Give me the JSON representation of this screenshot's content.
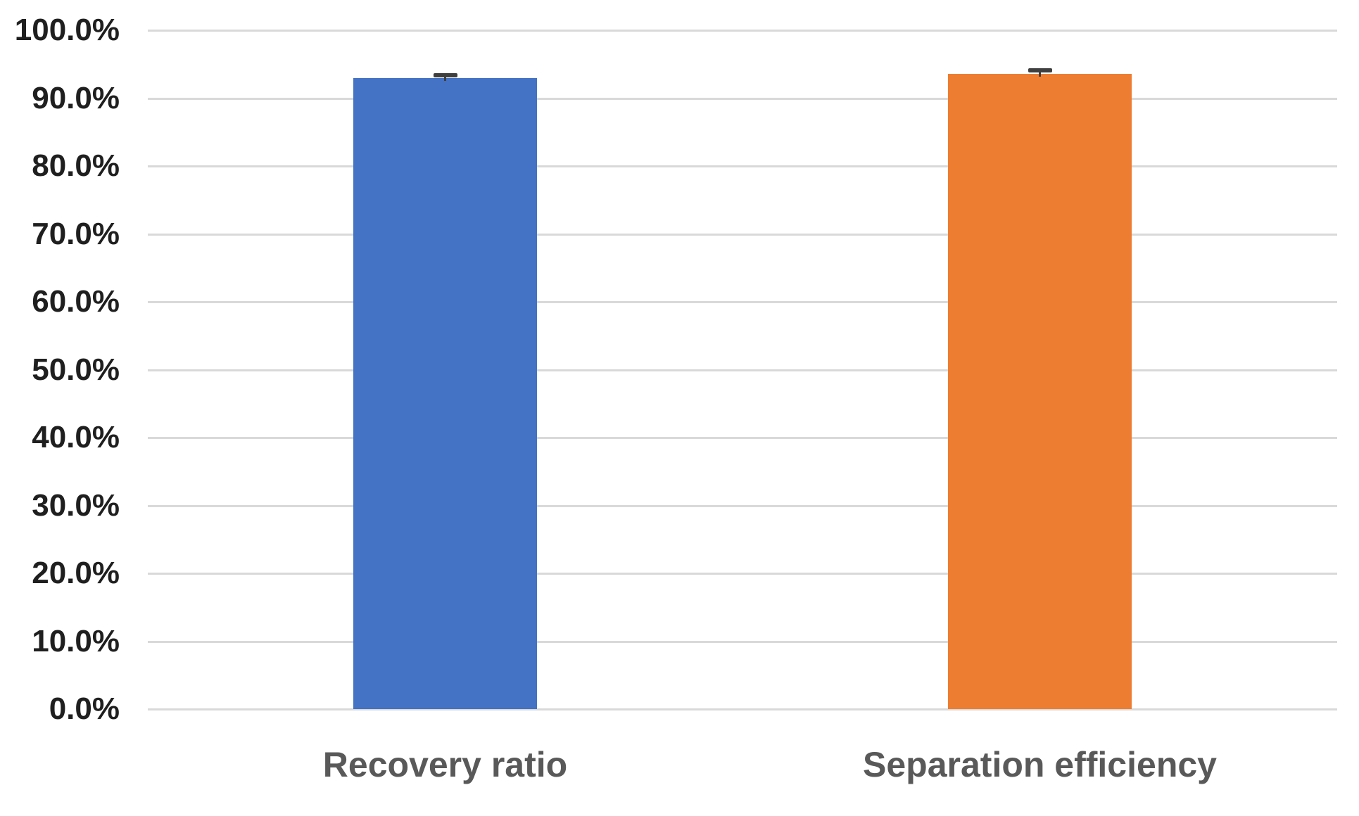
{
  "chart_data": {
    "type": "bar",
    "title": "",
    "xlabel": "",
    "ylabel": "",
    "categories": [
      "Recovery ratio",
      "Separation efficiency"
    ],
    "values": [
      93.0,
      93.6
    ],
    "errors_plus": [
      0.4,
      0.5
    ],
    "bar_colors": [
      "#4472c4",
      "#ed7d31"
    ],
    "ylim": [
      0,
      100
    ],
    "ytick_step": 10,
    "ytick_labels": [
      "0.0%",
      "10.0%",
      "20.0%",
      "30.0%",
      "40.0%",
      "50.0%",
      "60.0%",
      "70.0%",
      "80.0%",
      "90.0%",
      "100.0%"
    ],
    "grid": true,
    "legend_position": "none",
    "colors": {
      "gridline": "#d9d9d9",
      "tick_label": "#1f1f1f",
      "category_label": "#595959",
      "error_bar": "#3f3f3f",
      "background": "#ffffff"
    }
  }
}
